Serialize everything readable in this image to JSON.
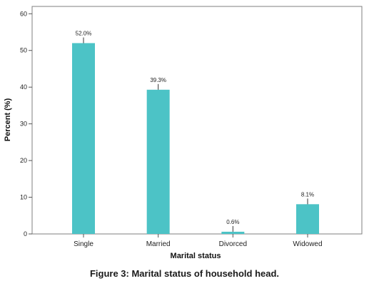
{
  "caption": "Figure 3: Marital status of household head.",
  "chart_data": {
    "type": "bar",
    "title": "",
    "xlabel": "Marital status",
    "ylabel": "Percent (%)",
    "categories": [
      "Single",
      "Married",
      "Divorced",
      "Widowed"
    ],
    "values": [
      52.0,
      39.3,
      0.6,
      8.1
    ],
    "data_labels": [
      "52.0%",
      "39.3%",
      "0.6%",
      "8.1%"
    ],
    "ylim": [
      0,
      62
    ],
    "yticks": [
      0,
      10,
      20,
      30,
      40,
      50,
      60
    ],
    "grid": false,
    "legend": "none",
    "bar_color": "#4cc3c6"
  }
}
